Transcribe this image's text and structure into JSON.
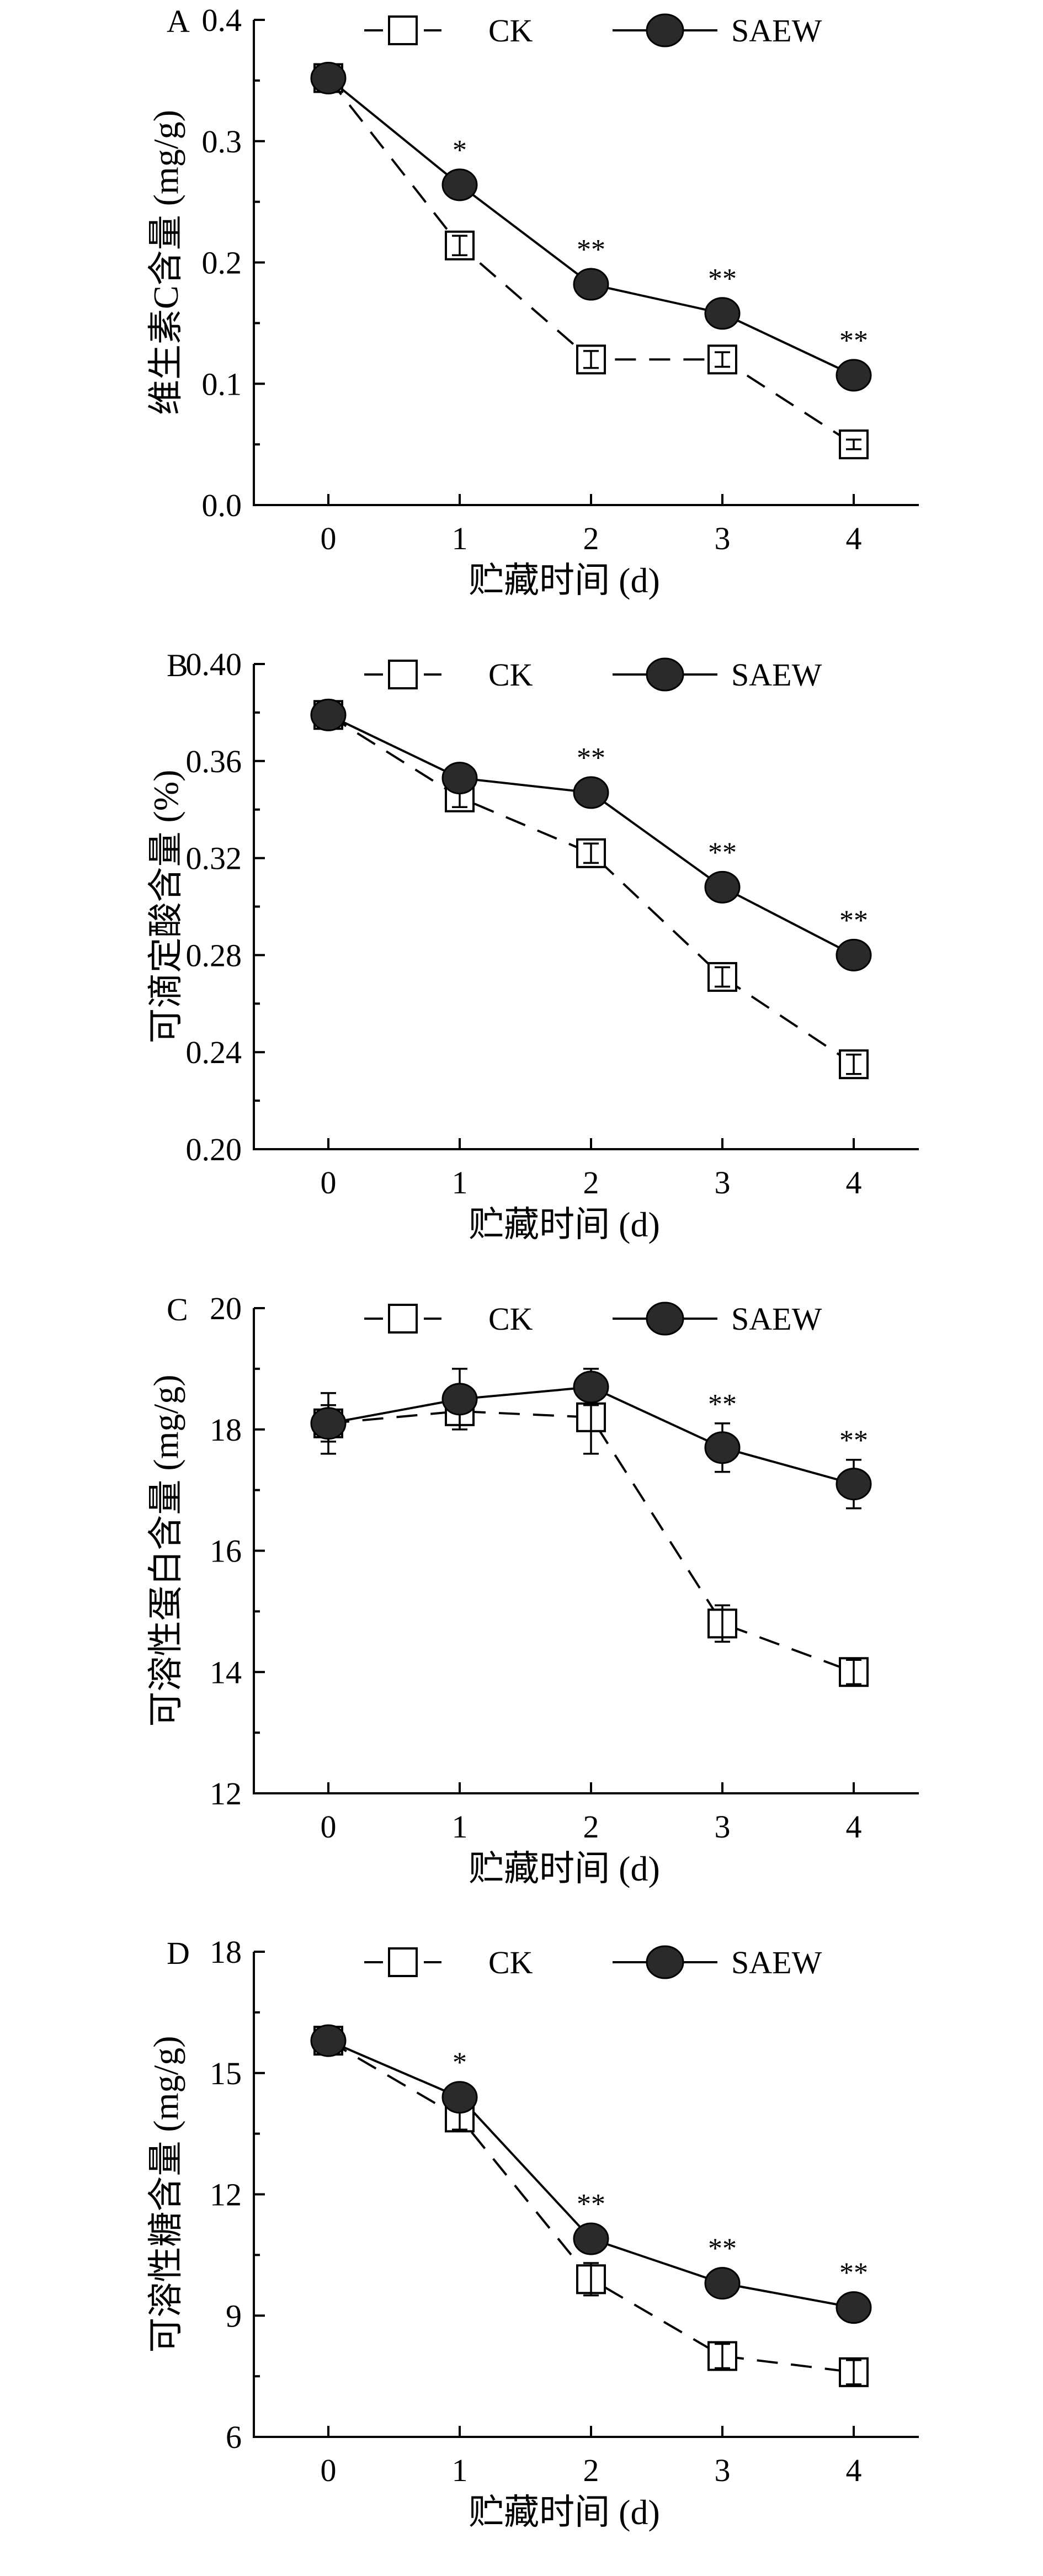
{
  "chart_data": [
    {
      "type": "line",
      "panel_label": "A",
      "ylabel": "维生素C含量 (mg/g)",
      "xlabel": "贮藏时间 (d)",
      "x": [
        0,
        1,
        2,
        3,
        4
      ],
      "xticks": [
        "0",
        "1",
        "2",
        "3",
        "4"
      ],
      "ylim": [
        0.0,
        0.4
      ],
      "yticks": [
        "0.0",
        "0.1",
        "0.2",
        "0.3",
        "0.4"
      ],
      "legend": [
        "CK",
        "SAEW"
      ],
      "legend_position": "top",
      "series": [
        {
          "name": "CK",
          "values": [
            0.352,
            0.214,
            0.12,
            0.12,
            0.05
          ],
          "errors": [
            0.005,
            0.008,
            0.007,
            0.006,
            0.004
          ],
          "marker": "open-square",
          "line": "dashed"
        },
        {
          "name": "SAEW",
          "values": [
            0.352,
            0.264,
            0.182,
            0.158,
            0.107
          ],
          "errors": [
            0.005,
            0.006,
            0.008,
            0.006,
            0.005
          ],
          "marker": "filled-circle",
          "line": "solid"
        }
      ],
      "annotations": [
        "",
        "*",
        "**",
        "**",
        "**"
      ]
    },
    {
      "type": "line",
      "panel_label": "B",
      "ylabel": "可滴定酸含量 (%)",
      "xlabel": "贮藏时间 (d)",
      "x": [
        0,
        1,
        2,
        3,
        4
      ],
      "xticks": [
        "0",
        "1",
        "2",
        "3",
        "4"
      ],
      "ylim": [
        0.2,
        0.4
      ],
      "yticks": [
        "0.20",
        "0.24",
        "0.28",
        "0.32",
        "0.36",
        "0.40"
      ],
      "legend": [
        "CK",
        "SAEW"
      ],
      "legend_position": "top",
      "series": [
        {
          "name": "CK",
          "values": [
            0.379,
            0.345,
            0.322,
            0.271,
            0.235
          ],
          "errors": [
            0.003,
            0.004,
            0.004,
            0.004,
            0.004
          ],
          "marker": "open-square",
          "line": "dashed"
        },
        {
          "name": "SAEW",
          "values": [
            0.379,
            0.353,
            0.347,
            0.308,
            0.28
          ],
          "errors": [
            0.003,
            0.003,
            0.003,
            0.003,
            0.003
          ],
          "marker": "filled-circle",
          "line": "solid"
        }
      ],
      "annotations": [
        "",
        "",
        "**",
        "**",
        "**"
      ]
    },
    {
      "type": "line",
      "panel_label": "C",
      "ylabel": "可溶性蛋白含量 (mg/g)",
      "xlabel": "贮藏时间 (d)",
      "x": [
        0,
        1,
        2,
        3,
        4
      ],
      "xticks": [
        "0",
        "1",
        "2",
        "3",
        "4"
      ],
      "ylim": [
        12,
        20
      ],
      "yticks": [
        "12",
        "14",
        "16",
        "18",
        "20"
      ],
      "legend": [
        "CK",
        "SAEW"
      ],
      "legend_position": "top",
      "series": [
        {
          "name": "CK",
          "values": [
            18.1,
            18.3,
            18.2,
            14.8,
            14.0
          ],
          "errors": [
            0.5,
            0.3,
            0.6,
            0.3,
            0.2
          ],
          "marker": "open-square",
          "line": "dashed"
        },
        {
          "name": "SAEW",
          "values": [
            18.1,
            18.5,
            18.7,
            17.7,
            17.1
          ],
          "errors": [
            0.3,
            0.5,
            0.3,
            0.4,
            0.4
          ],
          "marker": "filled-circle",
          "line": "solid"
        }
      ],
      "annotations": [
        "",
        "",
        "",
        "**",
        "**"
      ]
    },
    {
      "type": "line",
      "panel_label": "D",
      "ylabel": "可溶性糖含量 (mg/g)",
      "xlabel": "贮藏时间 (d)",
      "x": [
        0,
        1,
        2,
        3,
        4
      ],
      "xticks": [
        "0",
        "1",
        "2",
        "3",
        "4"
      ],
      "ylim": [
        6,
        18
      ],
      "yticks": [
        "6",
        "9",
        "12",
        "15",
        "18"
      ],
      "legend": [
        "CK",
        "SAEW"
      ],
      "legend_position": "top",
      "series": [
        {
          "name": "CK",
          "values": [
            15.8,
            13.9,
            9.9,
            8.0,
            7.6
          ],
          "errors": [
            0.2,
            0.3,
            0.4,
            0.3,
            0.3
          ],
          "marker": "open-square",
          "line": "dashed"
        },
        {
          "name": "SAEW",
          "values": [
            15.8,
            14.4,
            10.9,
            9.8,
            9.2
          ],
          "errors": [
            0.2,
            0.3,
            0.2,
            0.2,
            0.2
          ],
          "marker": "filled-circle",
          "line": "solid"
        }
      ],
      "annotations": [
        "",
        "*",
        "**",
        "**",
        "**"
      ]
    }
  ]
}
